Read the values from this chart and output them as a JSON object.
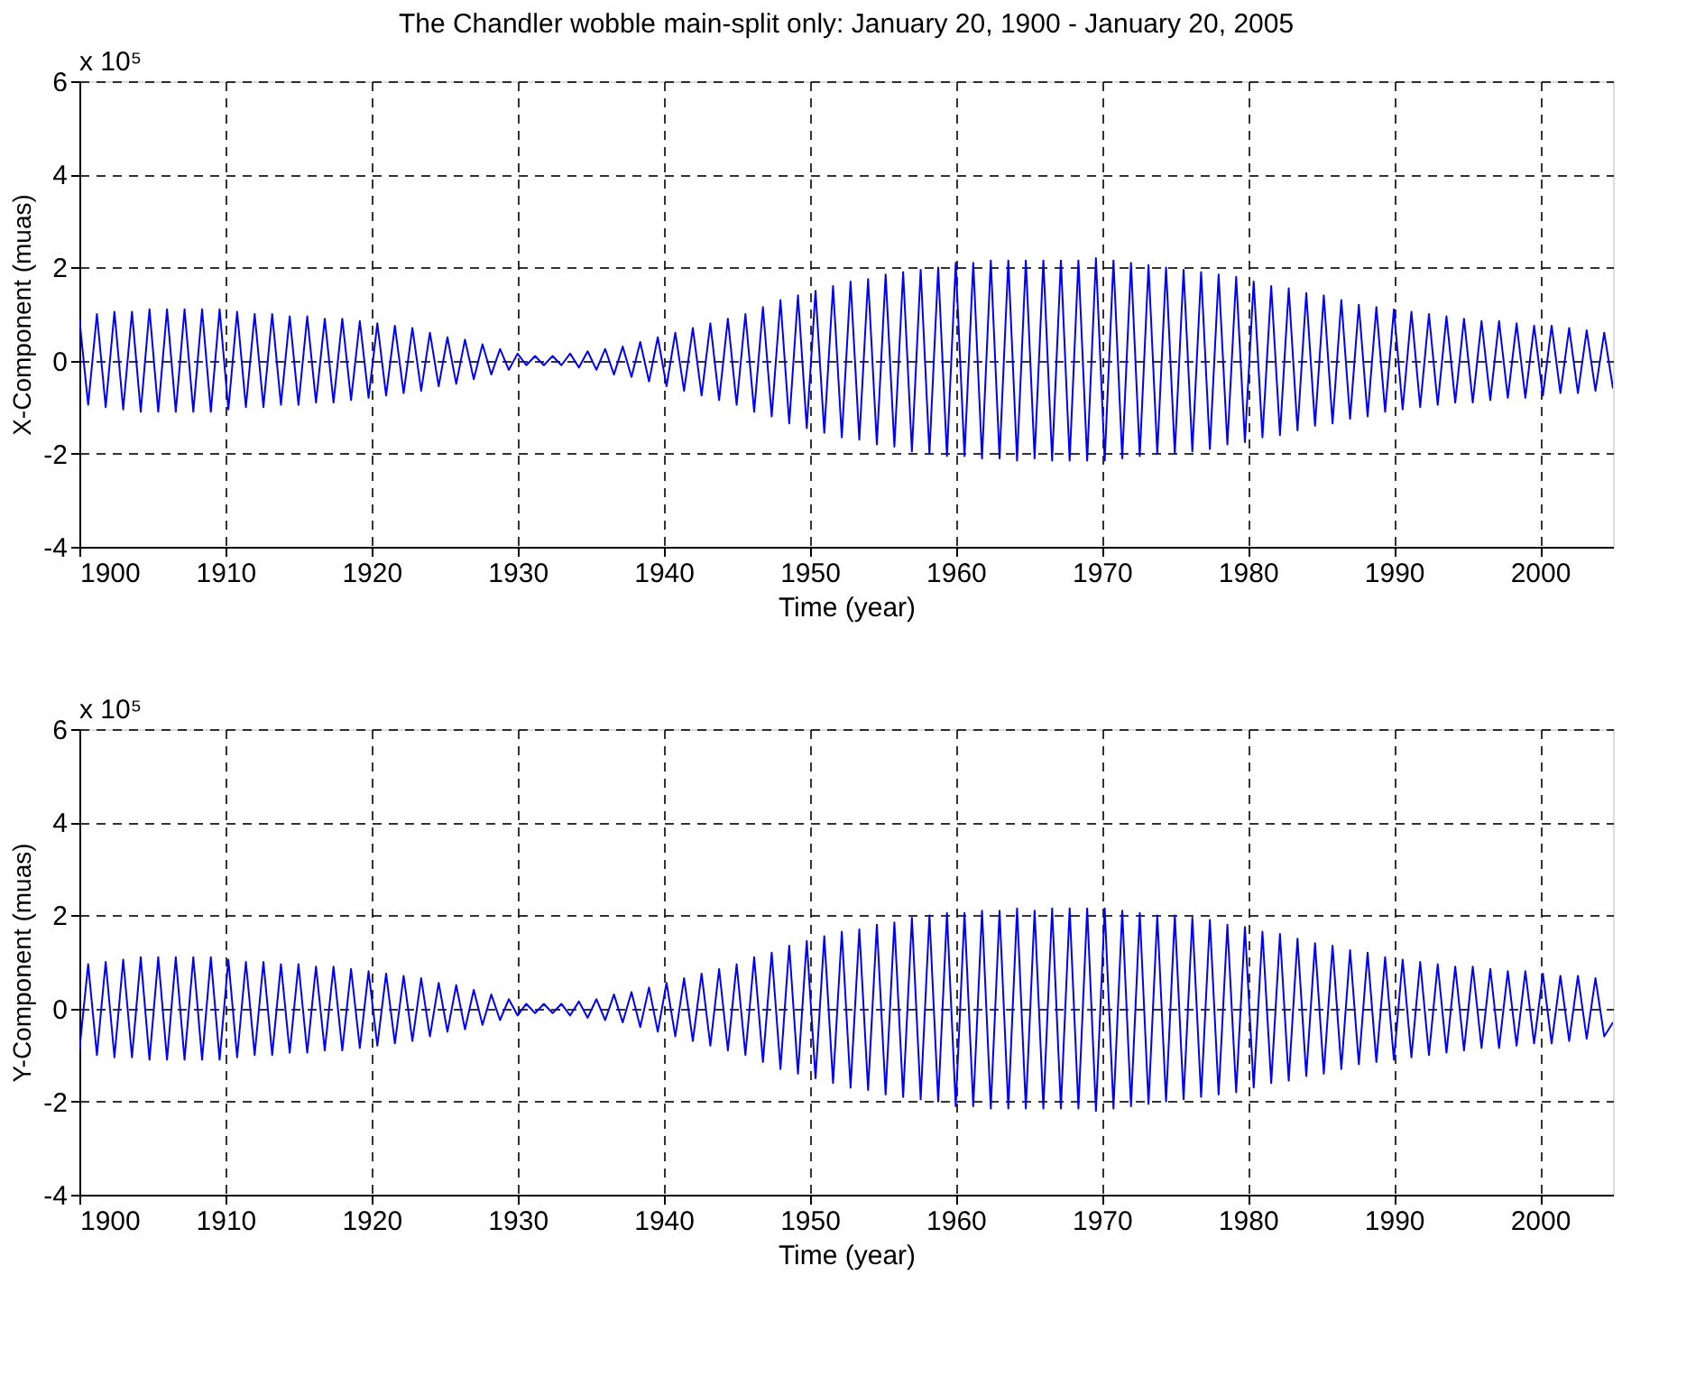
{
  "chart_data": [
    {
      "type": "line",
      "title": "The Chandler wobble main-split only: January 20, 1900 - January 20, 2005",
      "xlabel": "Time (year)",
      "ylabel": "X-Component (muas)",
      "annotations": [
        "x 10⁵"
      ],
      "xlim": [
        1900,
        2005
      ],
      "xticks": [
        1900,
        1910,
        1920,
        1930,
        1940,
        1950,
        1960,
        1970,
        1980,
        1990,
        2000
      ],
      "ylim": [
        -4,
        6
      ],
      "yticks": [
        -4,
        -2,
        0,
        2,
        4,
        6
      ],
      "grid": true,
      "line_style": "solid",
      "x": [
        1900,
        1900.6,
        1901.2,
        1901.8,
        1902.4,
        1903,
        1903.6,
        1904.2,
        1904.8,
        1905.4,
        1906,
        1906.6,
        1907.2,
        1907.8,
        1908.4,
        1909,
        1909.6,
        1910.2,
        1910.8,
        1911.4,
        1912,
        1912.6,
        1913.2,
        1913.8,
        1914.4,
        1915,
        1915.6,
        1916.2,
        1916.8,
        1917.4,
        1918,
        1918.6,
        1919.2,
        1919.8,
        1920.4,
        1921,
        1921.6,
        1922.2,
        1922.8,
        1923.4,
        1924,
        1924.6,
        1925.2,
        1925.8,
        1926.4,
        1927,
        1927.6,
        1928.2,
        1928.8,
        1929.4,
        1930,
        1930.6,
        1931.2,
        1931.8,
        1932.4,
        1933,
        1933.6,
        1934.2,
        1934.8,
        1935.4,
        1936,
        1936.6,
        1937.2,
        1937.8,
        1938.4,
        1939,
        1939.6,
        1940.2,
        1940.8,
        1941.4,
        1942,
        1942.6,
        1943.2,
        1943.8,
        1944.4,
        1945,
        1945.6,
        1946.2,
        1946.8,
        1947.4,
        1948,
        1948.6,
        1949.2,
        1949.8,
        1950.4,
        1951,
        1951.6,
        1952.2,
        1952.8,
        1953.4,
        1954,
        1954.6,
        1955.2,
        1955.8,
        1956.4,
        1957,
        1957.6,
        1958.2,
        1958.8,
        1959.4,
        1960,
        1960.6,
        1961.2,
        1961.8,
        1962.4,
        1963,
        1963.6,
        1964.2,
        1964.8,
        1965.4,
        1966,
        1966.6,
        1967.2,
        1967.8,
        1968.4,
        1969,
        1969.6,
        1970.2,
        1970.8,
        1971.4,
        1972,
        1972.6,
        1973.2,
        1973.8,
        1974.4,
        1975,
        1975.6,
        1976.2,
        1976.8,
        1977.4,
        1978,
        1978.6,
        1979.2,
        1979.8,
        1980.4,
        1981,
        1981.6,
        1982.2,
        1982.8,
        1983.4,
        1984,
        1984.6,
        1985.2,
        1985.8,
        1986.4,
        1987,
        1987.6,
        1988.2,
        1988.8,
        1989.4,
        1990,
        1990.6,
        1991.2,
        1991.8,
        1992.4,
        1993,
        1993.6,
        1994.2,
        1994.8,
        1995.4,
        1996,
        1996.6,
        1997.2,
        1997.8,
        1998.4,
        1999,
        1999.6,
        2000.2,
        2000.8,
        2001.4,
        2002,
        2002.6,
        2003.2,
        2003.8,
        2004.4,
        2005
      ],
      "series": [
        {
          "color": "#0000ff",
          "values": [
            0.9,
            -0.95,
            1.0,
            -1.0,
            1.05,
            -1.05,
            1.05,
            -1.1,
            1.1,
            -1.1,
            1.1,
            -1.1,
            1.1,
            -1.1,
            1.1,
            -1.1,
            1.1,
            -1.05,
            1.05,
            -1.0,
            1.0,
            -1.0,
            1.0,
            -0.95,
            0.95,
            -0.95,
            0.95,
            -0.9,
            0.9,
            -0.9,
            0.9,
            -0.85,
            0.85,
            -0.8,
            0.8,
            -0.75,
            0.75,
            -0.7,
            0.7,
            -0.65,
            0.6,
            -0.55,
            0.5,
            -0.5,
            0.45,
            -0.4,
            0.35,
            -0.3,
            0.25,
            -0.2,
            0.15,
            -0.1,
            0.1,
            -0.1,
            0.1,
            -0.1,
            0.15,
            -0.15,
            0.2,
            -0.2,
            0.25,
            -0.3,
            0.3,
            -0.35,
            0.4,
            -0.45,
            0.5,
            -0.55,
            0.6,
            -0.65,
            0.7,
            -0.75,
            0.8,
            -0.85,
            0.9,
            -0.95,
            1.0,
            -1.1,
            1.15,
            -1.2,
            1.3,
            -1.35,
            1.4,
            -1.45,
            1.5,
            -1.55,
            1.6,
            -1.65,
            1.7,
            -1.7,
            1.75,
            -1.8,
            1.85,
            -1.85,
            1.9,
            -1.95,
            1.95,
            -2.0,
            2.0,
            -2.05,
            2.1,
            -2.05,
            2.1,
            -2.1,
            2.15,
            -2.1,
            2.15,
            -2.15,
            2.15,
            -2.1,
            2.15,
            -2.15,
            2.15,
            -2.15,
            2.15,
            -2.15,
            2.2,
            -2.15,
            2.15,
            -2.1,
            2.1,
            -2.05,
            2.05,
            -2.0,
            2.0,
            -2.0,
            1.95,
            -1.95,
            1.9,
            -1.9,
            1.85,
            -1.8,
            1.8,
            -1.75,
            1.7,
            -1.65,
            1.6,
            -1.6,
            1.55,
            -1.5,
            1.45,
            -1.4,
            1.4,
            -1.35,
            1.3,
            -1.25,
            1.2,
            -1.2,
            1.15,
            -1.1,
            1.1,
            -1.05,
            1.05,
            -1.0,
            1.0,
            -0.95,
            0.95,
            -0.9,
            0.9,
            -0.9,
            0.85,
            -0.85,
            0.85,
            -0.8,
            0.8,
            -0.8,
            0.75,
            -0.75,
            0.75,
            -0.7,
            0.7,
            -0.7,
            0.65,
            -0.65,
            0.6,
            -0.6
          ]
        }
      ]
    },
    {
      "type": "line",
      "xlabel": "Time (year)",
      "ylabel": "Y-Component (muas)",
      "annotations": [
        "x 10⁵"
      ],
      "xlim": [
        1900,
        2005
      ],
      "xticks": [
        1900,
        1910,
        1920,
        1930,
        1940,
        1950,
        1960,
        1970,
        1980,
        1990,
        2000
      ],
      "ylim": [
        -4,
        6
      ],
      "yticks": [
        -4,
        -2,
        0,
        2,
        4,
        6
      ],
      "grid": true,
      "line_style": "solid",
      "x": [
        1900,
        1900.6,
        1901.2,
        1901.8,
        1902.4,
        1903,
        1903.6,
        1904.2,
        1904.8,
        1905.4,
        1906,
        1906.6,
        1907.2,
        1907.8,
        1908.4,
        1909,
        1909.6,
        1910.2,
        1910.8,
        1911.4,
        1912,
        1912.6,
        1913.2,
        1913.8,
        1914.4,
        1915,
        1915.6,
        1916.2,
        1916.8,
        1917.4,
        1918,
        1918.6,
        1919.2,
        1919.8,
        1920.4,
        1921,
        1921.6,
        1922.2,
        1922.8,
        1923.4,
        1924,
        1924.6,
        1925.2,
        1925.8,
        1926.4,
        1927,
        1927.6,
        1928.2,
        1928.8,
        1929.4,
        1930,
        1930.6,
        1931.2,
        1931.8,
        1932.4,
        1933,
        1933.6,
        1934.2,
        1934.8,
        1935.4,
        1936,
        1936.6,
        1937.2,
        1937.8,
        1938.4,
        1939,
        1939.6,
        1940.2,
        1940.8,
        1941.4,
        1942,
        1942.6,
        1943.2,
        1943.8,
        1944.4,
        1945,
        1945.6,
        1946.2,
        1946.8,
        1947.4,
        1948,
        1948.6,
        1949.2,
        1949.8,
        1950.4,
        1951,
        1951.6,
        1952.2,
        1952.8,
        1953.4,
        1954,
        1954.6,
        1955.2,
        1955.8,
        1956.4,
        1957,
        1957.6,
        1958.2,
        1958.8,
        1959.4,
        1960,
        1960.6,
        1961.2,
        1961.8,
        1962.4,
        1963,
        1963.6,
        1964.2,
        1964.8,
        1965.4,
        1966,
        1966.6,
        1967.2,
        1967.8,
        1968.4,
        1969,
        1969.6,
        1970.2,
        1970.8,
        1971.4,
        1972,
        1972.6,
        1973.2,
        1973.8,
        1974.4,
        1975,
        1975.6,
        1976.2,
        1976.8,
        1977.4,
        1978,
        1978.6,
        1979.2,
        1979.8,
        1980.4,
        1981,
        1981.6,
        1982.2,
        1982.8,
        1983.4,
        1984,
        1984.6,
        1985.2,
        1985.8,
        1986.4,
        1987,
        1987.6,
        1988.2,
        1988.8,
        1989.4,
        1990,
        1990.6,
        1991.2,
        1991.8,
        1992.4,
        1993,
        1993.6,
        1994.2,
        1994.8,
        1995.4,
        1996,
        1996.6,
        1997.2,
        1997.8,
        1998.4,
        1999,
        1999.6,
        2000.2,
        2000.8,
        2001.4,
        2002,
        2002.6,
        2003.2,
        2003.8,
        2004.4,
        2005
      ],
      "series": [
        {
          "color": "#0000ff",
          "values": [
            -0.9,
            0.95,
            -1.0,
            1.0,
            -1.05,
            1.05,
            -1.05,
            1.1,
            -1.1,
            1.1,
            -1.1,
            1.1,
            -1.1,
            1.1,
            -1.1,
            1.1,
            -1.1,
            1.05,
            -1.05,
            1.0,
            -1.0,
            1.0,
            -1.0,
            0.95,
            -0.95,
            0.95,
            -0.95,
            0.9,
            -0.9,
            0.9,
            -0.9,
            0.85,
            -0.85,
            0.8,
            -0.8,
            0.75,
            -0.75,
            0.7,
            -0.7,
            0.65,
            -0.6,
            0.55,
            -0.5,
            0.5,
            -0.45,
            0.4,
            -0.35,
            0.3,
            -0.25,
            0.2,
            -0.15,
            0.1,
            -0.1,
            0.1,
            -0.1,
            0.1,
            -0.15,
            0.15,
            -0.2,
            0.2,
            -0.25,
            0.3,
            -0.3,
            0.35,
            -0.4,
            0.45,
            -0.5,
            0.55,
            -0.6,
            0.65,
            -0.7,
            0.75,
            -0.8,
            0.85,
            -0.9,
            0.95,
            -1.0,
            1.1,
            -1.15,
            1.2,
            -1.3,
            1.35,
            -1.4,
            1.45,
            -1.5,
            1.55,
            -1.6,
            1.65,
            -1.7,
            1.7,
            -1.75,
            1.8,
            -1.85,
            1.85,
            -1.9,
            1.95,
            -1.95,
            2.0,
            -2.0,
            2.05,
            -2.1,
            2.05,
            -2.1,
            2.1,
            -2.15,
            2.1,
            -2.15,
            2.15,
            -2.15,
            2.1,
            -2.15,
            2.15,
            -2.15,
            2.15,
            -2.15,
            2.15,
            -2.2,
            2.15,
            -2.15,
            2.1,
            -2.1,
            2.05,
            -2.05,
            2.0,
            -2.0,
            2.0,
            -1.95,
            1.95,
            -1.9,
            1.9,
            -1.85,
            1.8,
            -1.8,
            1.75,
            -1.7,
            1.65,
            -1.6,
            1.6,
            -1.55,
            1.5,
            -1.45,
            1.4,
            -1.4,
            1.35,
            -1.3,
            1.25,
            -1.2,
            1.2,
            -1.15,
            1.1,
            -1.1,
            1.05,
            -1.05,
            1.0,
            -1.0,
            0.95,
            -0.95,
            0.9,
            -0.9,
            0.9,
            -0.85,
            0.85,
            -0.85,
            0.8,
            -0.8,
            0.8,
            -0.75,
            0.75,
            -0.75,
            0.7,
            -0.7,
            0.7,
            -0.65,
            0.65,
            -0.6,
            -0.3
          ]
        }
      ]
    }
  ]
}
